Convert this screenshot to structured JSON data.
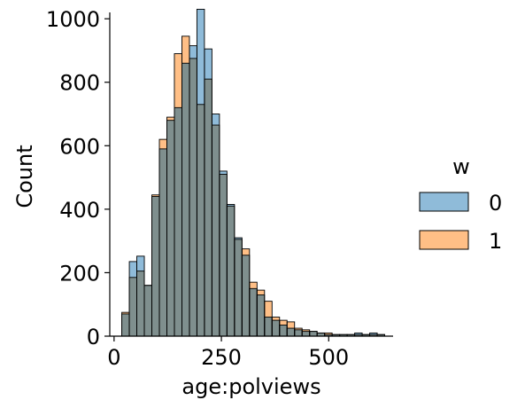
{
  "chart_data": {
    "type": "bar",
    "subtype": "overlaid-histogram",
    "title": "",
    "xlabel": "age:polviews",
    "ylabel": "Count",
    "xlim": [
      -10,
      650
    ],
    "ylim": [
      0,
      1020
    ],
    "x_ticks": [
      0,
      250,
      500
    ],
    "y_ticks": [
      0,
      200,
      400,
      600,
      800,
      1000
    ],
    "grid": false,
    "bin_edges": [
      18,
      35.5,
      53,
      70.5,
      88,
      105.5,
      123,
      140.5,
      158,
      175.5,
      193,
      210.5,
      228,
      245.5,
      263,
      280.5,
      298,
      315.5,
      333,
      350.5,
      368,
      385.5,
      403,
      420.5,
      438,
      455.5,
      473,
      490.5,
      508,
      525.5,
      543,
      560.5,
      578,
      595.5,
      613,
      630.5
    ],
    "legend": {
      "title": "w",
      "position": "right"
    },
    "series": [
      {
        "name": "0",
        "color": "#1f77b4",
        "values": [
          70,
          235,
          252,
          160,
          440,
          590,
          680,
          720,
          860,
          915,
          1030,
          905,
          700,
          520,
          415,
          310,
          255,
          150,
          130,
          60,
          50,
          35,
          25,
          20,
          15,
          15,
          10,
          5,
          5,
          5,
          5,
          10,
          5,
          10,
          5
        ]
      },
      {
        "name": "1",
        "color": "#ff7f0e",
        "values": [
          75,
          185,
          205,
          160,
          445,
          620,
          690,
          890,
          945,
          875,
          730,
          810,
          665,
          510,
          410,
          305,
          275,
          170,
          145,
          110,
          60,
          50,
          45,
          25,
          20,
          15,
          10,
          10,
          5,
          5,
          5,
          5,
          5,
          5,
          5
        ]
      }
    ]
  }
}
